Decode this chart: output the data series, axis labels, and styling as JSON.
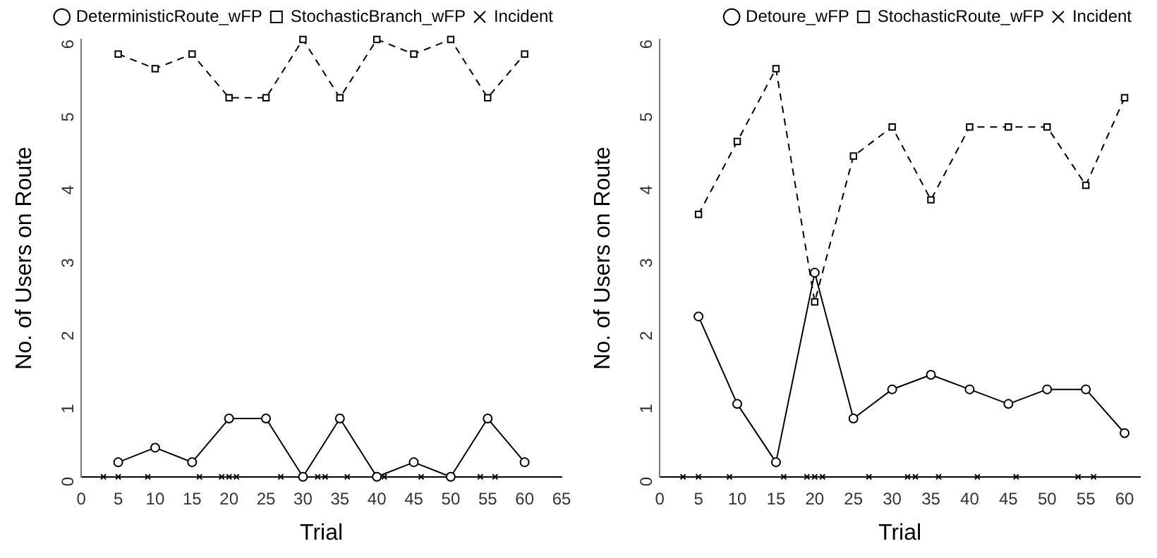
{
  "chart_data": [
    {
      "type": "line",
      "xlabel": "Trial",
      "ylabel": "No. of Users on Route",
      "x": [
        5,
        10,
        15,
        20,
        25,
        30,
        35,
        40,
        45,
        50,
        55,
        60
      ],
      "xlim": [
        0,
        65
      ],
      "xticks": [
        0,
        5,
        10,
        15,
        20,
        25,
        30,
        35,
        40,
        45,
        50,
        55,
        60,
        65
      ],
      "ylim": [
        0,
        6
      ],
      "yticks": [
        0,
        1,
        2,
        3,
        4,
        5,
        6
      ],
      "grid": false,
      "legend": "top right",
      "series": [
        {
          "name": "DeterministicRoute_wFP",
          "color": "#000000",
          "marker": "circle",
          "line_style": "solid",
          "values": [
            0.2,
            0.4,
            0.2,
            0.8,
            0.8,
            0,
            0.8,
            0,
            0.2,
            0,
            0.8,
            0.2
          ]
        },
        {
          "name": "StochasticBranch_wFP",
          "color": "#000000",
          "marker": "square",
          "line_style": "dashed",
          "values": [
            5.8,
            5.6,
            5.8,
            5.2,
            5.2,
            6,
            5.2,
            6,
            5.8,
            6,
            5.2,
            5.8
          ]
        },
        {
          "name": "Incident",
          "type": "scatter",
          "color": "#000000",
          "marker": "cross",
          "x": [
            3,
            5,
            9,
            16,
            19,
            20,
            21,
            27,
            32,
            33,
            36,
            41,
            46,
            54,
            56
          ],
          "values": [
            0,
            0,
            0,
            0,
            0,
            0,
            0,
            0,
            0,
            0,
            0,
            0,
            0,
            0,
            0
          ]
        }
      ]
    },
    {
      "type": "line",
      "xlabel": "Trial",
      "ylabel": "No. of Users on Route",
      "x": [
        5,
        10,
        15,
        20,
        25,
        30,
        35,
        40,
        45,
        50,
        55,
        60
      ],
      "xlim": [
        0,
        62
      ],
      "xticks": [
        0,
        5,
        10,
        15,
        20,
        25,
        30,
        35,
        40,
        45,
        50,
        55,
        60
      ],
      "ylim": [
        0,
        6
      ],
      "yticks": [
        0,
        1,
        2,
        3,
        4,
        5,
        6
      ],
      "grid": false,
      "legend": "top right",
      "series": [
        {
          "name": "Detoure_wFP",
          "color": "#000000",
          "marker": "circle",
          "line_style": "solid",
          "values": [
            2.2,
            1.0,
            0.2,
            2.8,
            0.8,
            1.2,
            1.4,
            1.2,
            1.0,
            1.2,
            1.2,
            0.6
          ]
        },
        {
          "name": "StochasticRoute_wFP",
          "color": "#000000",
          "marker": "square",
          "line_style": "dashed",
          "values": [
            3.6,
            4.6,
            5.6,
            2.4,
            4.4,
            4.8,
            3.8,
            4.8,
            4.8,
            4.8,
            4.0,
            5.2
          ]
        },
        {
          "name": "Incident",
          "type": "scatter",
          "color": "#000000",
          "marker": "cross",
          "x": [
            3,
            5,
            9,
            16,
            19,
            20,
            21,
            27,
            32,
            33,
            36,
            41,
            46,
            54,
            56
          ],
          "values": [
            0,
            0,
            0,
            0,
            0,
            0,
            0,
            0,
            0,
            0,
            0,
            0,
            0,
            0,
            0
          ]
        }
      ]
    }
  ]
}
